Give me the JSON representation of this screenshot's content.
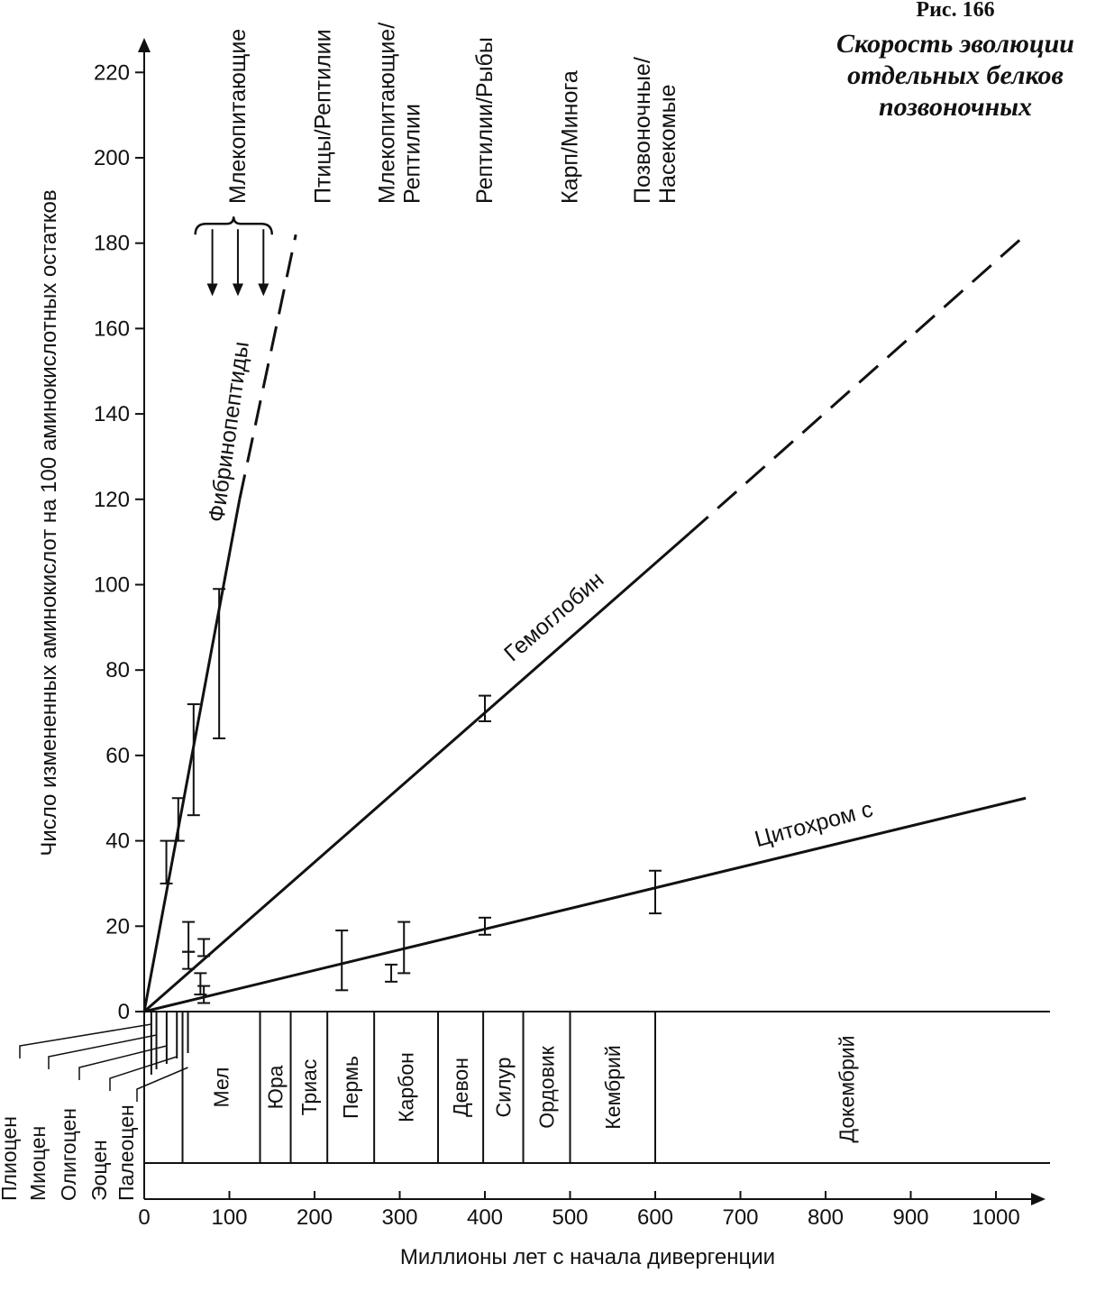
{
  "figure": {
    "number": "Рис. 166",
    "title_lines": [
      "Скорость эволюции",
      "отдельных белков",
      "позвоночных"
    ]
  },
  "chart_data": {
    "type": "line",
    "xlabel": "Миллионы лет с начала дивергенции",
    "ylabel": "Число измененных аминокислот на 100 аминокислотных остатков",
    "xlim": [
      0,
      1050
    ],
    "ylim": [
      0,
      230
    ],
    "x_ticks": [
      0,
      100,
      200,
      300,
      400,
      500,
      600,
      700,
      800,
      900,
      1000
    ],
    "y_ticks": [
      0,
      20,
      40,
      60,
      80,
      100,
      120,
      140,
      160,
      180,
      200,
      220
    ],
    "grid": false,
    "series": [
      {
        "name": "Фибринопептиды",
        "solid": [
          [
            0,
            0
          ],
          [
            112,
            120
          ]
        ],
        "dashed": [
          [
            112,
            120
          ],
          [
            178,
            182
          ]
        ],
        "error_bars": [
          {
            "x": 26,
            "y": 35,
            "low": 30,
            "high": 40
          },
          {
            "x": 40,
            "y": 45,
            "low": 40,
            "high": 50
          },
          {
            "x": 58,
            "y": 59,
            "low": 46,
            "high": 72
          },
          {
            "x": 88,
            "y": 81,
            "low": 64,
            "high": 99
          }
        ]
      },
      {
        "name": "Гемоглобин",
        "solid": [
          [
            0,
            0
          ],
          [
            640,
            112
          ]
        ],
        "dashed": [
          [
            640,
            112
          ],
          [
            1035,
            182
          ]
        ],
        "error_bars": [
          {
            "x": 400,
            "y": 71,
            "low": 68,
            "high": 74
          }
        ]
      },
      {
        "name": "Цитохром с",
        "solid": [
          [
            0,
            0
          ],
          [
            1035,
            50
          ]
        ],
        "dashed": [],
        "error_bars": [
          {
            "x": 52,
            "y": 17,
            "low": 14,
            "high": 21
          },
          {
            "x": 52,
            "y": 12,
            "low": 10,
            "high": 14
          },
          {
            "x": 70,
            "y": 15,
            "low": 13,
            "high": 17
          },
          {
            "x": 66,
            "y": 6,
            "low": 4,
            "high": 9
          },
          {
            "x": 70,
            "y": 4,
            "low": 2,
            "high": 6
          },
          {
            "x": 232,
            "y": 12,
            "low": 5,
            "high": 19
          },
          {
            "x": 290,
            "y": 9,
            "low": 7,
            "high": 11
          },
          {
            "x": 305,
            "y": 15,
            "low": 9,
            "high": 21
          },
          {
            "x": 400,
            "y": 20,
            "low": 18,
            "high": 22
          },
          {
            "x": 600,
            "y": 28,
            "low": 23,
            "high": 33
          }
        ]
      }
    ],
    "divergence_labels": [
      {
        "x": 110,
        "lines": [
          "Млекопитающие"
        ]
      },
      {
        "x": 210,
        "lines": [
          "Птицы/Рептилии"
        ]
      },
      {
        "x": 300,
        "lines": [
          "Млекопитающие/",
          "Рептилии"
        ]
      },
      {
        "x": 400,
        "lines": [
          "Рептилии/Рыбы"
        ]
      },
      {
        "x": 500,
        "lines": [
          "Карп/Минога"
        ]
      },
      {
        "x": 600,
        "lines": [
          "Позвоночные/",
          "Насекомые"
        ]
      }
    ],
    "mammal_bracket": {
      "x_from": 60,
      "x_to": 150,
      "arrows_x": [
        80,
        110,
        140
      ],
      "y_top": 182,
      "y_bottom": 168
    },
    "periods": [
      {
        "name": "Мел",
        "from": 45,
        "to": 136
      },
      {
        "name": "Юра",
        "from": 136,
        "to": 172
      },
      {
        "name": "Триас",
        "from": 172,
        "to": 215
      },
      {
        "name": "Пермь",
        "from": 215,
        "to": 270
      },
      {
        "name": "Карбон",
        "from": 270,
        "to": 345
      },
      {
        "name": "Девон",
        "from": 345,
        "to": 398
      },
      {
        "name": "Силур",
        "from": 398,
        "to": 445
      },
      {
        "name": "Ордовик",
        "from": 445,
        "to": 500
      },
      {
        "name": "Кембрий",
        "from": 500,
        "to": 600
      },
      {
        "name": "Докембрий",
        "from": 600,
        "to": 1050
      }
    ],
    "epochs": [
      {
        "name": "Плиоцен",
        "x": 2
      },
      {
        "name": "Миоцен",
        "x": 8
      },
      {
        "name": "Олигоцен",
        "x": 20
      },
      {
        "name": "Эоцен",
        "x": 32
      },
      {
        "name": "Палеоцен",
        "x": 45
      }
    ]
  }
}
